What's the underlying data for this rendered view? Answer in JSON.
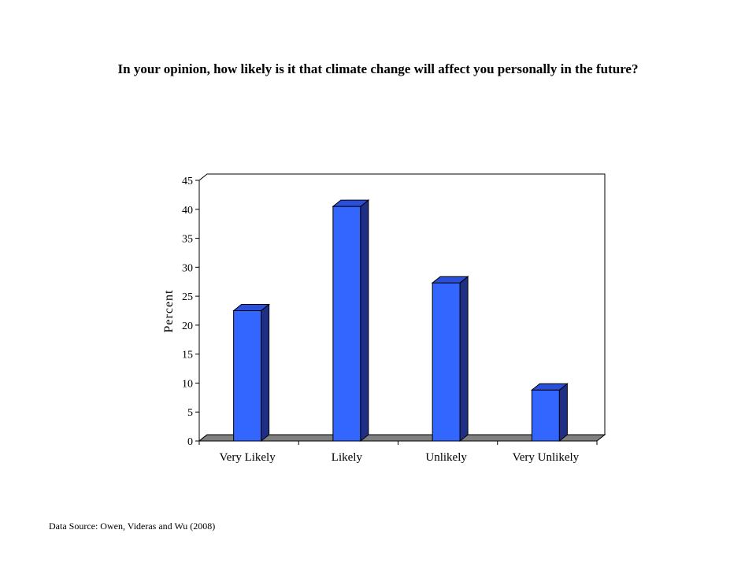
{
  "title": "In your opinion, how likely is it that climate change will affect you personally in the future?",
  "source": "Data Source: Owen, Videras and Wu (2008)",
  "chart_data": {
    "type": "bar",
    "style": "3d-column",
    "categories": [
      "Very Likely",
      "Likely",
      "Unlikely",
      "Very Unlikely"
    ],
    "values": [
      22.5,
      40.5,
      27.3,
      8.8
    ],
    "ylabel": "Percent",
    "xlabel": "",
    "ylim": [
      0,
      45
    ],
    "yticks": [
      0,
      5,
      10,
      15,
      20,
      25,
      30,
      35,
      40,
      45
    ],
    "grid": false,
    "legend": "none",
    "colors": {
      "bar_front": "#3366ff",
      "bar_side": "#1f2f86",
      "bar_top": "#2a4fd8",
      "floor": "#808080",
      "axis": "#000000"
    }
  }
}
